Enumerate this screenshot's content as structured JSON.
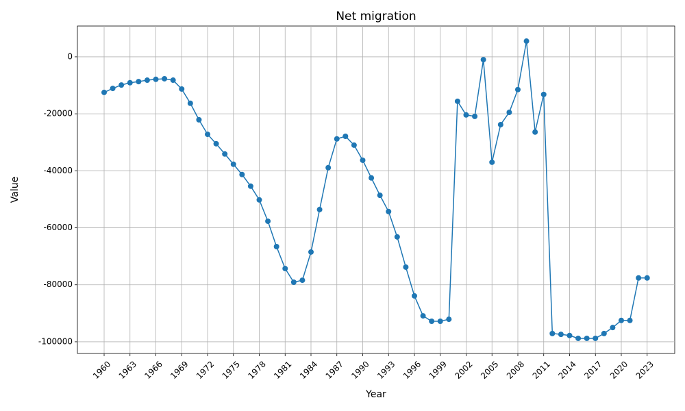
{
  "chart_data": {
    "type": "line",
    "title": "Net migration",
    "x_label": "Year",
    "y_label": "Value",
    "x": [
      1960,
      1961,
      1962,
      1963,
      1964,
      1965,
      1966,
      1967,
      1968,
      1969,
      1970,
      1971,
      1972,
      1973,
      1974,
      1975,
      1976,
      1977,
      1978,
      1979,
      1980,
      1981,
      1982,
      1983,
      1984,
      1985,
      1986,
      1987,
      1988,
      1989,
      1990,
      1991,
      1992,
      1993,
      1994,
      1995,
      1996,
      1997,
      1998,
      1999,
      2000,
      2001,
      2002,
      2003,
      2004,
      2005,
      2006,
      2007,
      2008,
      2009,
      2010,
      2011,
      2012,
      2013,
      2014,
      2015,
      2016,
      2017,
      2018,
      2019,
      2020,
      2021,
      2022,
      2023
    ],
    "values": [
      -12500,
      -11100,
      -9900,
      -9100,
      -8700,
      -8200,
      -7900,
      -7700,
      -8200,
      -11300,
      -16300,
      -22100,
      -27200,
      -30500,
      -34100,
      -37700,
      -41300,
      -45400,
      -50200,
      -57700,
      -66600,
      -74300,
      -79100,
      -78400,
      -68500,
      -53600,
      -38900,
      -28800,
      -27900,
      -31000,
      -36300,
      -42500,
      -48600,
      -54300,
      -63200,
      -73800,
      -83900,
      -90900,
      -92800,
      -92800,
      -92100,
      -15600,
      -20400,
      -20900,
      -1000,
      -37000,
      -23800,
      -19500,
      -11500,
      5500,
      -26400,
      -13200,
      -97100,
      -97400,
      -97800,
      -98800,
      -98800,
      -98800,
      -97100,
      -95000,
      -92500,
      -92500,
      -77600,
      -77600
    ],
    "color": "#1f77b4",
    "xlim": [
      1956.9,
      2026.2
    ],
    "xticks": [
      1960,
      1963,
      1966,
      1969,
      1972,
      1975,
      1978,
      1981,
      1984,
      1987,
      1990,
      1993,
      1996,
      1999,
      2002,
      2005,
      2008,
      2011,
      2014,
      2017,
      2020,
      2023
    ],
    "ylim": [
      -104100,
      10800
    ],
    "yticks": [
      -100000,
      -80000,
      -60000,
      -40000,
      -20000,
      0
    ],
    "grid": true
  }
}
